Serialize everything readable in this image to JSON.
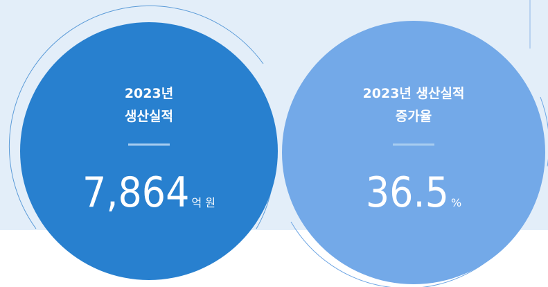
{
  "cards": [
    {
      "title": [
        "2023년",
        "생산실적"
      ],
      "value": "7,864",
      "unit": "억 원"
    },
    {
      "title": [
        "2023년 생산실적",
        "증가율"
      ],
      "value": "36.5",
      "unit": "%"
    }
  ]
}
